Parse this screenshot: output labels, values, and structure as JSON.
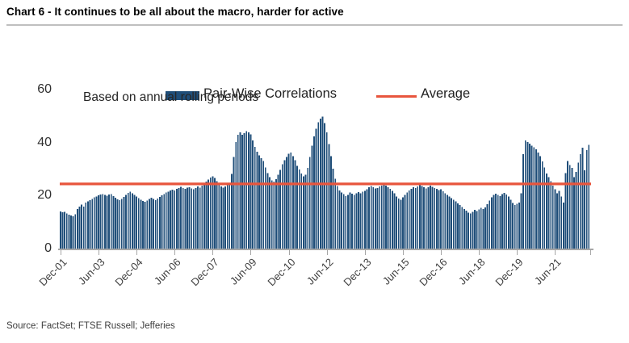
{
  "header": {
    "title": "Chart 6 - It continues to be all about the macro, harder for active"
  },
  "legend": {
    "series_label": "Pair-Wise Correlations",
    "average_label": "Average"
  },
  "annotation": "Based on annual rolling periods",
  "source": "Source: FactSet; FTSE Russell; Jefferies",
  "colors": {
    "bar": "#1F4E79",
    "average_line": "#E8553D",
    "axis": "#A6A6A6",
    "divider": "#BFBFBF"
  },
  "chart_data": {
    "type": "bar",
    "title": "Pair-Wise Correlations",
    "subtitle": "Based on annual rolling periods",
    "x_start": "Dec-2001",
    "x_end": "Oct-2022",
    "frequency": "monthly",
    "grid": false,
    "legend_position": "top",
    "ylim": [
      0,
      60
    ],
    "y_ticks": [
      0,
      20,
      40,
      60
    ],
    "average": 24.4,
    "x_tick_labels": [
      "Dec-01",
      "Jun-03",
      "Dec-04",
      "Jun-06",
      "Dec-07",
      "Jun-09",
      "Dec-10",
      "Jun-12",
      "Dec-13",
      "Jun-15",
      "Dec-16",
      "Jun-18",
      "Dec-19",
      "Jun-21"
    ],
    "x_tick_indices": [
      0,
      18,
      36,
      54,
      72,
      90,
      108,
      126,
      144,
      162,
      180,
      198,
      216,
      234
    ],
    "values": [
      14.0,
      13.7,
      13.9,
      13.3,
      12.8,
      12.5,
      12.2,
      13.0,
      14.9,
      15.9,
      16.6,
      15.8,
      17.3,
      17.8,
      18.3,
      18.8,
      19.3,
      19.7,
      20.1,
      20.4,
      20.6,
      20.3,
      20.0,
      20.4,
      20.6,
      19.8,
      19.2,
      18.6,
      18.2,
      18.8,
      19.5,
      20.3,
      21.0,
      21.4,
      20.8,
      20.2,
      19.6,
      19.0,
      18.5,
      18.0,
      17.6,
      18.1,
      18.7,
      19.2,
      18.8,
      18.3,
      18.9,
      19.5,
      20.1,
      20.6,
      21.1,
      21.5,
      21.9,
      22.3,
      22.0,
      22.5,
      22.9,
      23.3,
      22.9,
      22.6,
      23.0,
      23.1,
      22.7,
      22.4,
      22.9,
      23.4,
      23.0,
      23.8,
      24.6,
      25.3,
      26.1,
      26.8,
      27.3,
      26.6,
      25.4,
      24.3,
      23.5,
      23.0,
      23.4,
      23.9,
      24.4,
      28.2,
      34.5,
      40.2,
      43.0,
      43.8,
      42.9,
      43.6,
      44.3,
      43.8,
      43.1,
      40.8,
      38.4,
      36.6,
      35.2,
      34.1,
      33.0,
      30.6,
      28.5,
      26.9,
      25.8,
      25.3,
      26.2,
      27.8,
      29.7,
      31.8,
      33.4,
      34.6,
      35.8,
      36.2,
      34.9,
      33.3,
      31.2,
      29.8,
      28.3,
      27.2,
      27.8,
      30.4,
      34.6,
      38.8,
      42.3,
      45.2,
      47.6,
      49.1,
      49.8,
      47.4,
      43.9,
      39.5,
      34.8,
      30.2,
      26.4,
      23.6,
      21.9,
      21.2,
      20.6,
      19.8,
      20.3,
      21.1,
      20.7,
      20.2,
      20.8,
      21.3,
      20.9,
      21.4,
      21.8,
      22.4,
      23.1,
      23.6,
      23.2,
      22.7,
      22.9,
      23.4,
      23.8,
      24.2,
      23.7,
      23.1,
      22.6,
      21.8,
      20.9,
      19.7,
      18.9,
      18.5,
      19.4,
      20.2,
      21.1,
      21.9,
      22.6,
      23.1,
      22.8,
      23.4,
      24.0,
      23.6,
      23.1,
      22.7,
      23.2,
      23.7,
      23.3,
      22.9,
      22.5,
      22.1,
      22.4,
      21.7,
      20.9,
      20.2,
      19.6,
      19.0,
      18.4,
      17.8,
      17.1,
      16.4,
      15.7,
      15.0,
      14.3,
      13.6,
      13.2,
      13.9,
      14.6,
      14.1,
      14.8,
      15.4,
      14.9,
      15.6,
      16.8,
      18.1,
      19.4,
      20.2,
      20.7,
      20.3,
      19.8,
      20.5,
      21.0,
      20.4,
      19.6,
      18.4,
      17.2,
      16.5,
      16.9,
      17.4,
      20.8,
      35.6,
      40.8,
      40.2,
      39.6,
      38.9,
      38.2,
      37.4,
      36.3,
      34.8,
      32.9,
      30.6,
      28.4,
      26.9,
      25.4,
      23.8,
      22.4,
      20.8,
      21.8,
      19.6,
      17.3,
      28.5,
      33.0,
      31.5,
      30.5,
      26.9,
      29.0,
      32.5,
      35.6,
      38.1,
      29.5,
      37.1,
      39.1
    ]
  }
}
